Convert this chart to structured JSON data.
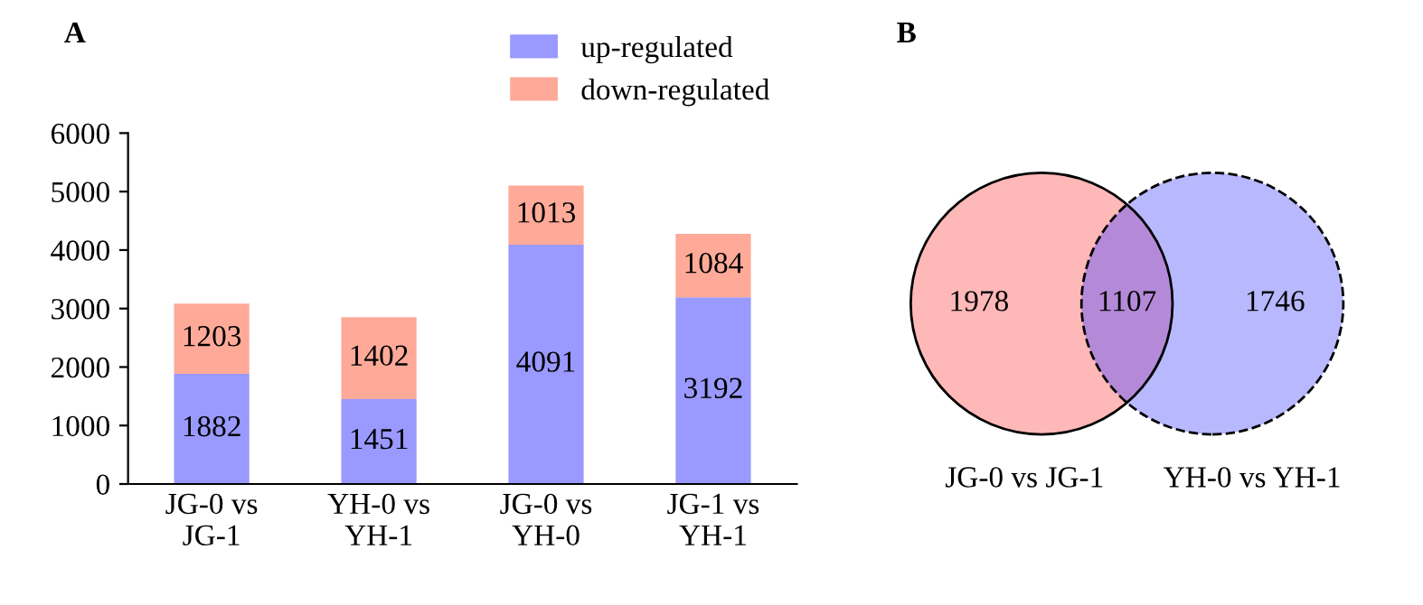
{
  "chart_data": [
    {
      "type": "bar",
      "title": "A",
      "categories": [
        "JG-0 vs\nJG-1",
        "YH-0 vs\nYH-1",
        "JG-0 vs\nYH-0",
        "JG-1 vs\nYH-1"
      ],
      "stacked": true,
      "series": [
        {
          "name": "up-regulated",
          "color": "#9999ff",
          "values": [
            1882,
            1451,
            4091,
            3192
          ]
        },
        {
          "name": "down-regulated",
          "color": "#ffaa99",
          "values": [
            1203,
            1402,
            1013,
            1084
          ]
        }
      ],
      "ylim": [
        0,
        6000
      ],
      "yticks": [
        0,
        1000,
        2000,
        3000,
        4000,
        5000,
        6000
      ],
      "data_labels": true,
      "legend": "top",
      "grid": false
    },
    {
      "type": "other",
      "title": "B",
      "categories": [
        "JG-0 vs JG-1",
        null,
        "YH-0 vs YH-1"
      ],
      "values": [
        1978,
        1107,
        1746
      ],
      "colors": [
        "#ffb8b8",
        "#b48ad8",
        "#b8b8ff"
      ],
      "data_labels": true
    }
  ]
}
